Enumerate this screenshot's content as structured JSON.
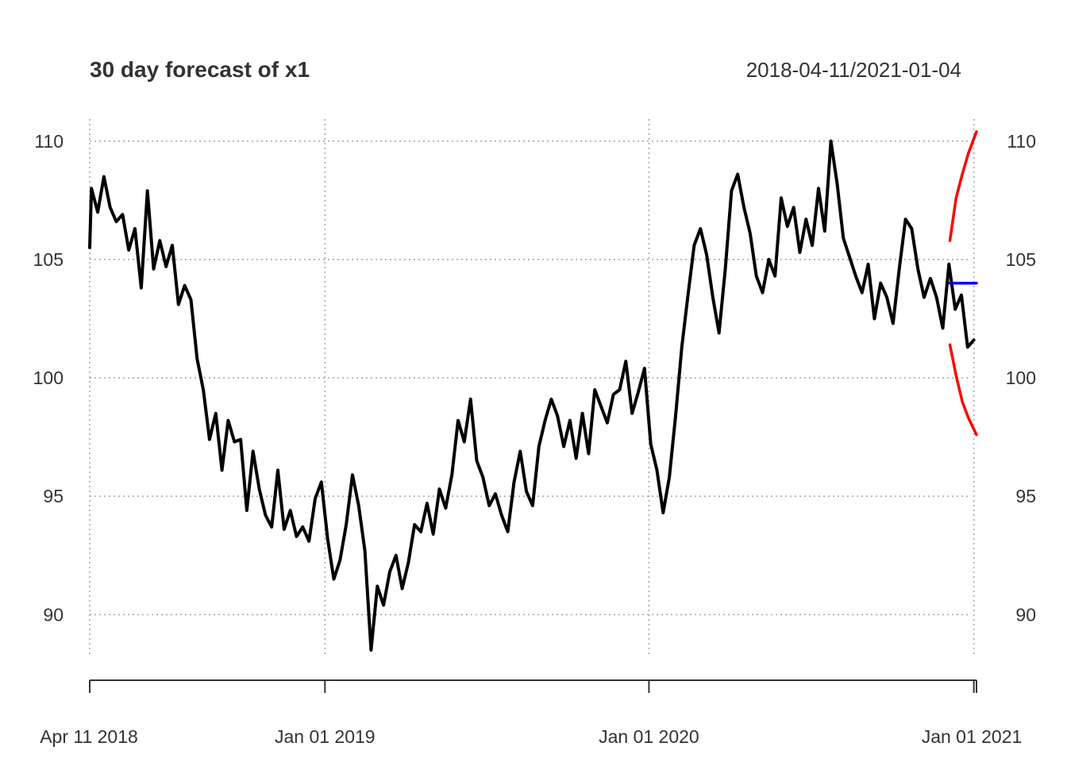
{
  "chart_data": {
    "type": "line",
    "title": "30 day forecast of x1",
    "subtitle": "2018-04-11/2021-01-04",
    "xlabel": "",
    "ylabel": "",
    "x_tick_labels": [
      "Apr 11 2018",
      "Jan 01 2019",
      "Jan 01 2020",
      "Jan 01 2021"
    ],
    "y_tick_labels": [
      "90",
      "95",
      "100",
      "105",
      "110"
    ],
    "y_ticks": [
      90,
      95,
      100,
      105,
      110
    ],
    "ylim": [
      88.3,
      111.2
    ],
    "xlim": [
      "2018-04-11",
      "2021-01-04"
    ],
    "grid": true,
    "series": [
      {
        "color": "#000000",
        "points": [
          [
            "2018-04-11",
            105.5
          ],
          [
            "2018-04-13",
            108.0
          ],
          [
            "2018-04-20",
            107.0
          ],
          [
            "2018-04-27",
            108.5
          ],
          [
            "2018-05-04",
            107.2
          ],
          [
            "2018-05-11",
            106.6
          ],
          [
            "2018-05-18",
            106.9
          ],
          [
            "2018-05-25",
            105.4
          ],
          [
            "2018-06-01",
            106.3
          ],
          [
            "2018-06-08",
            103.8
          ],
          [
            "2018-06-15",
            107.9
          ],
          [
            "2018-06-22",
            104.6
          ],
          [
            "2018-06-29",
            105.8
          ],
          [
            "2018-07-06",
            104.7
          ],
          [
            "2018-07-13",
            105.6
          ],
          [
            "2018-07-20",
            103.1
          ],
          [
            "2018-07-27",
            103.9
          ],
          [
            "2018-08-03",
            103.3
          ],
          [
            "2018-08-10",
            100.8
          ],
          [
            "2018-08-17",
            99.5
          ],
          [
            "2018-08-24",
            97.4
          ],
          [
            "2018-08-31",
            98.5
          ],
          [
            "2018-09-07",
            96.1
          ],
          [
            "2018-09-14",
            98.2
          ],
          [
            "2018-09-21",
            97.3
          ],
          [
            "2018-09-28",
            97.4
          ],
          [
            "2018-10-05",
            94.4
          ],
          [
            "2018-10-12",
            96.9
          ],
          [
            "2018-10-19",
            95.3
          ],
          [
            "2018-10-26",
            94.2
          ],
          [
            "2018-11-02",
            93.7
          ],
          [
            "2018-11-09",
            96.1
          ],
          [
            "2018-11-16",
            93.6
          ],
          [
            "2018-11-23",
            94.4
          ],
          [
            "2018-11-30",
            93.3
          ],
          [
            "2018-12-07",
            93.7
          ],
          [
            "2018-12-14",
            93.1
          ],
          [
            "2018-12-21",
            94.9
          ],
          [
            "2018-12-28",
            95.6
          ],
          [
            "2019-01-04",
            93.2
          ],
          [
            "2019-01-11",
            91.5
          ],
          [
            "2019-01-18",
            92.3
          ],
          [
            "2019-01-25",
            93.8
          ],
          [
            "2019-02-01",
            95.9
          ],
          [
            "2019-02-08",
            94.6
          ],
          [
            "2019-02-15",
            92.7
          ],
          [
            "2019-02-22",
            88.5
          ],
          [
            "2019-03-01",
            91.2
          ],
          [
            "2019-03-08",
            90.4
          ],
          [
            "2019-03-15",
            91.8
          ],
          [
            "2019-03-22",
            92.5
          ],
          [
            "2019-03-29",
            91.1
          ],
          [
            "2019-04-05",
            92.2
          ],
          [
            "2019-04-12",
            93.8
          ],
          [
            "2019-04-19",
            93.5
          ],
          [
            "2019-04-26",
            94.7
          ],
          [
            "2019-05-03",
            93.4
          ],
          [
            "2019-05-10",
            95.3
          ],
          [
            "2019-05-17",
            94.5
          ],
          [
            "2019-05-24",
            95.9
          ],
          [
            "2019-05-31",
            98.2
          ],
          [
            "2019-06-07",
            97.3
          ],
          [
            "2019-06-14",
            99.1
          ],
          [
            "2019-06-21",
            96.5
          ],
          [
            "2019-06-28",
            95.8
          ],
          [
            "2019-07-05",
            94.6
          ],
          [
            "2019-07-12",
            95.1
          ],
          [
            "2019-07-19",
            94.2
          ],
          [
            "2019-07-26",
            93.5
          ],
          [
            "2019-08-02",
            95.6
          ],
          [
            "2019-08-09",
            96.9
          ],
          [
            "2019-08-16",
            95.2
          ],
          [
            "2019-08-23",
            94.6
          ],
          [
            "2019-08-30",
            97.1
          ],
          [
            "2019-09-06",
            98.2
          ],
          [
            "2019-09-13",
            99.1
          ],
          [
            "2019-09-20",
            98.4
          ],
          [
            "2019-09-27",
            97.1
          ],
          [
            "2019-10-04",
            98.2
          ],
          [
            "2019-10-11",
            96.6
          ],
          [
            "2019-10-18",
            98.5
          ],
          [
            "2019-10-25",
            96.8
          ],
          [
            "2019-11-01",
            99.5
          ],
          [
            "2019-11-08",
            98.8
          ],
          [
            "2019-11-15",
            98.1
          ],
          [
            "2019-11-22",
            99.3
          ],
          [
            "2019-11-29",
            99.5
          ],
          [
            "2019-12-06",
            100.7
          ],
          [
            "2019-12-13",
            98.5
          ],
          [
            "2019-12-20",
            99.4
          ],
          [
            "2019-12-27",
            100.4
          ],
          [
            "2020-01-03",
            97.2
          ],
          [
            "2020-01-10",
            96.1
          ],
          [
            "2020-01-17",
            94.3
          ],
          [
            "2020-01-24",
            95.8
          ],
          [
            "2020-01-31",
            98.4
          ],
          [
            "2020-02-07",
            101.3
          ],
          [
            "2020-02-14",
            103.5
          ],
          [
            "2020-02-21",
            105.6
          ],
          [
            "2020-02-28",
            106.3
          ],
          [
            "2020-03-06",
            105.2
          ],
          [
            "2020-03-13",
            103.4
          ],
          [
            "2020-03-20",
            101.9
          ],
          [
            "2020-03-27",
            104.6
          ],
          [
            "2020-04-03",
            107.9
          ],
          [
            "2020-04-10",
            108.6
          ],
          [
            "2020-04-17",
            107.2
          ],
          [
            "2020-04-24",
            106.1
          ],
          [
            "2020-05-01",
            104.3
          ],
          [
            "2020-05-08",
            103.6
          ],
          [
            "2020-05-15",
            105.0
          ],
          [
            "2020-05-22",
            104.3
          ],
          [
            "2020-05-29",
            107.6
          ],
          [
            "2020-06-05",
            106.4
          ],
          [
            "2020-06-12",
            107.2
          ],
          [
            "2020-06-19",
            105.3
          ],
          [
            "2020-06-26",
            106.7
          ],
          [
            "2020-07-03",
            105.6
          ],
          [
            "2020-07-10",
            108.0
          ],
          [
            "2020-07-17",
            106.2
          ],
          [
            "2020-07-24",
            110.0
          ],
          [
            "2020-07-31",
            108.2
          ],
          [
            "2020-08-07",
            105.9
          ],
          [
            "2020-08-14",
            105.1
          ],
          [
            "2020-08-21",
            104.3
          ],
          [
            "2020-08-28",
            103.6
          ],
          [
            "2020-09-04",
            104.8
          ],
          [
            "2020-09-11",
            102.5
          ],
          [
            "2020-09-18",
            104.0
          ],
          [
            "2020-09-25",
            103.4
          ],
          [
            "2020-10-02",
            102.3
          ],
          [
            "2020-10-09",
            104.6
          ],
          [
            "2020-10-16",
            106.7
          ],
          [
            "2020-10-23",
            106.3
          ],
          [
            "2020-10-30",
            104.6
          ],
          [
            "2020-11-06",
            103.4
          ],
          [
            "2020-11-13",
            104.2
          ],
          [
            "2020-11-20",
            103.4
          ],
          [
            "2020-11-27",
            102.1
          ],
          [
            "2020-12-04",
            104.8
          ],
          [
            "2020-12-11",
            102.9
          ],
          [
            "2020-12-18",
            103.5
          ],
          [
            "2020-12-25",
            101.3
          ],
          [
            "2021-01-01",
            101.6
          ]
        ]
      },
      {
        "color": "#0000ff",
        "points": [
          [
            "2020-12-05",
            104.0
          ],
          [
            "2021-01-04",
            104.0
          ]
        ]
      },
      {
        "color": "#ff0000",
        "points": [
          [
            "2020-12-05",
            105.8
          ],
          [
            "2020-12-12",
            107.6
          ],
          [
            "2020-12-19",
            108.6
          ],
          [
            "2020-12-26",
            109.5
          ],
          [
            "2021-01-04",
            110.4
          ]
        ]
      },
      {
        "color": "#ff0000",
        "points": [
          [
            "2020-12-05",
            101.4
          ],
          [
            "2020-12-12",
            100.1
          ],
          [
            "2020-12-19",
            99.0
          ],
          [
            "2020-12-26",
            98.3
          ],
          [
            "2021-01-04",
            97.6
          ]
        ]
      }
    ]
  }
}
